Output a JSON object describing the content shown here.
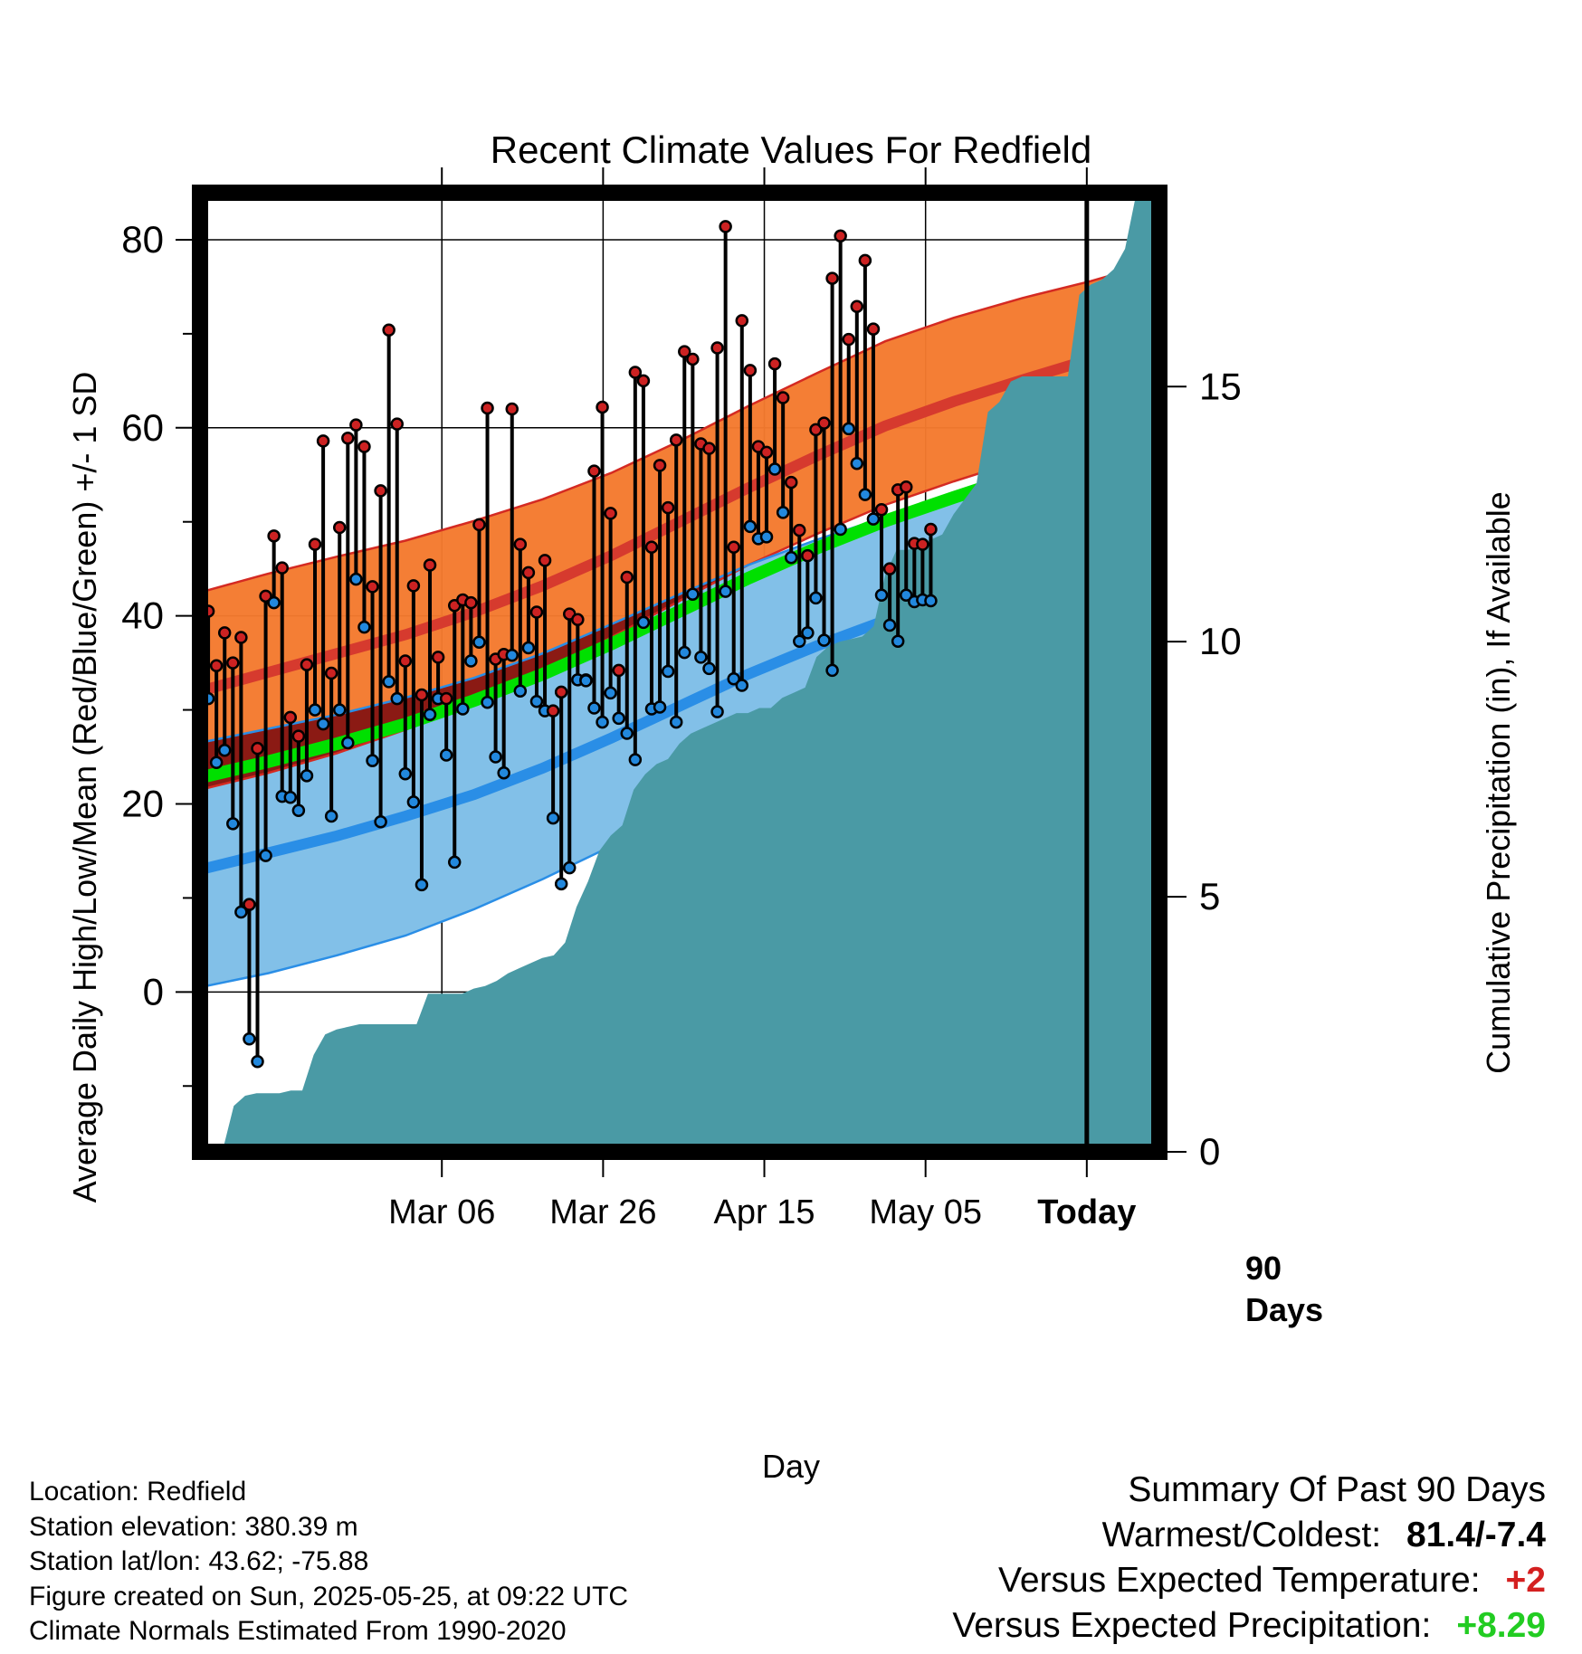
{
  "chart_data": {
    "type": "line",
    "title": "Recent Climate Values For Redfield",
    "xlabel": "Day",
    "ylabel": "Average Daily High/Low/Mean (Red/Blue/Green) +/- 1 SD",
    "y2label": "Cumulative Precipitation (in), If Available",
    "ylim": [
      -17,
      85
    ],
    "y2lim": [
      0,
      18.8
    ],
    "yticks": [
      "0",
      "20",
      "40",
      "60",
      "80"
    ],
    "y2ticks": [
      "0",
      "5",
      "10",
      "15"
    ],
    "xticks": [
      "Mar 06",
      "Mar 26",
      "Apr 15",
      "May 05",
      "Today"
    ],
    "xtick_days": [
      10,
      30,
      50,
      70,
      90
    ],
    "marker_label": [
      "90",
      "Days"
    ],
    "x_days": [
      0,
      1,
      2,
      3,
      4,
      5,
      6,
      7,
      8,
      9,
      10,
      11,
      12,
      13,
      14,
      15,
      16,
      17,
      18,
      19,
      20,
      21,
      22,
      23,
      24,
      25,
      26,
      27,
      28,
      29,
      30,
      31,
      32,
      33,
      34,
      35,
      36,
      37,
      38,
      39,
      40,
      41,
      42,
      43,
      44,
      45,
      46,
      47,
      48,
      49,
      50,
      51,
      52,
      53,
      54,
      55,
      56,
      57,
      58,
      59,
      60,
      61,
      62,
      63,
      64,
      65,
      66,
      67,
      68,
      69,
      70,
      71,
      72,
      73,
      74,
      75,
      76,
      77,
      78,
      79,
      80,
      81,
      82,
      83,
      84,
      85,
      86,
      87,
      88,
      89,
      90
    ],
    "series": [
      {
        "name": "High",
        "color": "#cc2222",
        "values": [
          40.3,
          40.5,
          34.7,
          38.2,
          35.0,
          37.7,
          9.3,
          25.9,
          42.1,
          48.5,
          45.1,
          29.2,
          27.2,
          34.8,
          47.6,
          58.6,
          33.9,
          49.4,
          58.9,
          60.3,
          58.0,
          43.1,
          53.3,
          70.4,
          60.4,
          35.2,
          43.2,
          31.6,
          45.4,
          35.6,
          31.2,
          41.1,
          41.7,
          41.4,
          49.7,
          62.1,
          35.4,
          35.9,
          62.0,
          47.6,
          44.6,
          40.4,
          45.9,
          29.9,
          31.9,
          40.2,
          39.6,
          33.2,
          55.4,
          62.2,
          50.9,
          34.2,
          44.1,
          65.9,
          65.0,
          47.3,
          56.0,
          51.5,
          58.7,
          68.1,
          67.3,
          58.3,
          57.8,
          68.5,
          81.4,
          47.3,
          71.4,
          66.1,
          58.0,
          57.4,
          66.8,
          63.2,
          54.2,
          49.1,
          46.4,
          59.8,
          60.5,
          75.9,
          80.4,
          69.4,
          72.9,
          77.8,
          70.5,
          51.3,
          45.0,
          53.4,
          53.7,
          47.7,
          47.6,
          49.2
        ]
      },
      {
        "name": "Low",
        "color": "#2288dd",
        "values": [
          25.0,
          31.2,
          24.4,
          25.7,
          17.9,
          8.5,
          -5.0,
          -7.4,
          14.5,
          41.4,
          20.8,
          20.7,
          19.3,
          23.0,
          30.0,
          28.5,
          18.7,
          30.0,
          26.5,
          43.9,
          38.8,
          24.6,
          18.1,
          33.0,
          31.2,
          23.2,
          20.2,
          11.4,
          29.5,
          31.2,
          25.2,
          13.8,
          30.1,
          35.2,
          37.2,
          30.8,
          25.0,
          23.3,
          35.8,
          32.0,
          36.6,
          30.9,
          29.9,
          18.5,
          11.5,
          13.2,
          33.2,
          33.1,
          30.2,
          28.7,
          31.8,
          29.1,
          27.5,
          24.7,
          39.3,
          30.1,
          30.3,
          34.1,
          28.7,
          36.1,
          42.3,
          35.6,
          34.4,
          29.8,
          42.6,
          33.3,
          32.6,
          49.5,
          48.2,
          48.4,
          55.6,
          51.0,
          46.2,
          37.3,
          38.2,
          41.9,
          37.4,
          34.2,
          49.2,
          59.9,
          56.2,
          52.9,
          50.3,
          42.2,
          39.0,
          37.3,
          42.2,
          41.5,
          41.7,
          41.6
        ]
      },
      {
        "name": "Normal High",
        "color": "#d63a2e",
        "values": [
          32.0,
          34.0,
          36.0,
          38.0,
          40.4,
          43.2,
          46.4,
          50.0,
          53.6,
          57.0,
          60.2,
          62.8,
          65.1,
          67.3,
          69.5
        ]
      },
      {
        "name": "Normal High +1 SD",
        "color": "#f47a2e",
        "values": [
          42.5,
          44.5,
          46.3,
          48.0,
          50.1,
          52.4,
          55.2,
          58.6,
          62.3,
          65.8,
          69.2,
          71.7,
          73.8,
          75.6,
          77.7
        ]
      },
      {
        "name": "Normal High -1 SD",
        "color": "#f47a2e",
        "values": [
          21.5,
          23.3,
          25.4,
          27.9,
          30.7,
          34.0,
          37.7,
          41.6,
          45.4,
          48.7,
          51.8,
          54.3,
          56.6,
          58.8,
          61.0
        ]
      },
      {
        "name": "Normal Low",
        "color": "#2a8ee6",
        "values": [
          13.0,
          14.8,
          16.6,
          18.7,
          21.0,
          23.8,
          27.0,
          30.4,
          33.8,
          36.8,
          39.5,
          41.8,
          44.0,
          46.5,
          49.5
        ]
      },
      {
        "name": "Normal Low +1 SD",
        "color": "#82c0e8",
        "values": [
          26.5,
          28.0,
          29.5,
          31.3,
          33.4,
          36.0,
          39.1,
          42.3,
          45.4,
          48.1,
          50.5,
          52.4,
          54.1,
          55.9,
          57.3
        ]
      },
      {
        "name": "Normal Low -1 SD",
        "color": "#82c0e8",
        "values": [
          0.5,
          2.0,
          3.9,
          6.0,
          8.8,
          12.0,
          15.5,
          19.0,
          22.5,
          25.6,
          28.4,
          31.3,
          34.3,
          37.4,
          42.3
        ]
      },
      {
        "name": "Normal Mean",
        "color": "#00e000",
        "values": [
          22.8,
          24.5,
          26.4,
          28.5,
          31.0,
          33.8,
          37.0,
          40.5,
          44.0,
          47.2,
          50.1,
          52.6,
          55.0,
          57.2,
          59.5
        ]
      },
      {
        "name": "Cumulative Precipitation",
        "color": "#4a9aa5",
        "values": [
          0.0,
          0.0,
          0.9,
          1.1,
          1.15,
          1.15,
          1.15,
          1.2,
          1.2,
          1.9,
          2.3,
          2.4,
          2.45,
          2.5,
          2.5,
          2.5,
          2.5,
          2.5,
          2.5,
          3.1,
          3.1,
          3.1,
          3.1,
          3.2,
          3.25,
          3.35,
          3.5,
          3.6,
          3.7,
          3.8,
          3.85,
          4.1,
          4.8,
          5.3,
          5.9,
          6.2,
          6.4,
          7.1,
          7.4,
          7.6,
          7.7,
          8.0,
          8.2,
          8.3,
          8.4,
          8.5,
          8.6,
          8.6,
          8.7,
          8.7,
          8.9,
          9.0,
          9.1,
          9.7,
          9.9,
          10.0,
          10.05,
          10.1,
          10.3,
          11.3,
          11.8,
          11.8,
          11.9,
          12.0,
          12.1,
          12.5,
          12.8,
          13.1,
          14.5,
          14.7,
          15.1,
          15.2,
          15.2,
          15.2,
          15.2,
          15.2,
          16.8,
          17.0,
          17.1,
          17.3,
          17.7,
          18.8,
          18.9,
          18.9
        ]
      }
    ]
  },
  "footer": {
    "location": "Location: Redfield",
    "elevation": "Station elevation: 380.39 m",
    "latlon": "Station lat/lon: 43.62; -75.88",
    "created": "Figure created on Sun, 2025-05-25, at 09:22 UTC",
    "normals": "Climate Normals Estimated From 1990-2020"
  },
  "summary": {
    "title": "Summary Of Past 90 Days",
    "warm_cold_label": "Warmest/Coldest:",
    "warm_cold_value": "81.4/-7.4",
    "temp_label": "Versus Expected Temperature:",
    "temp_value": "+2",
    "temp_color": "#d42020",
    "precip_label": "Versus Expected Precipitation:",
    "precip_value": "+8.29",
    "precip_color": "#22cc22"
  }
}
